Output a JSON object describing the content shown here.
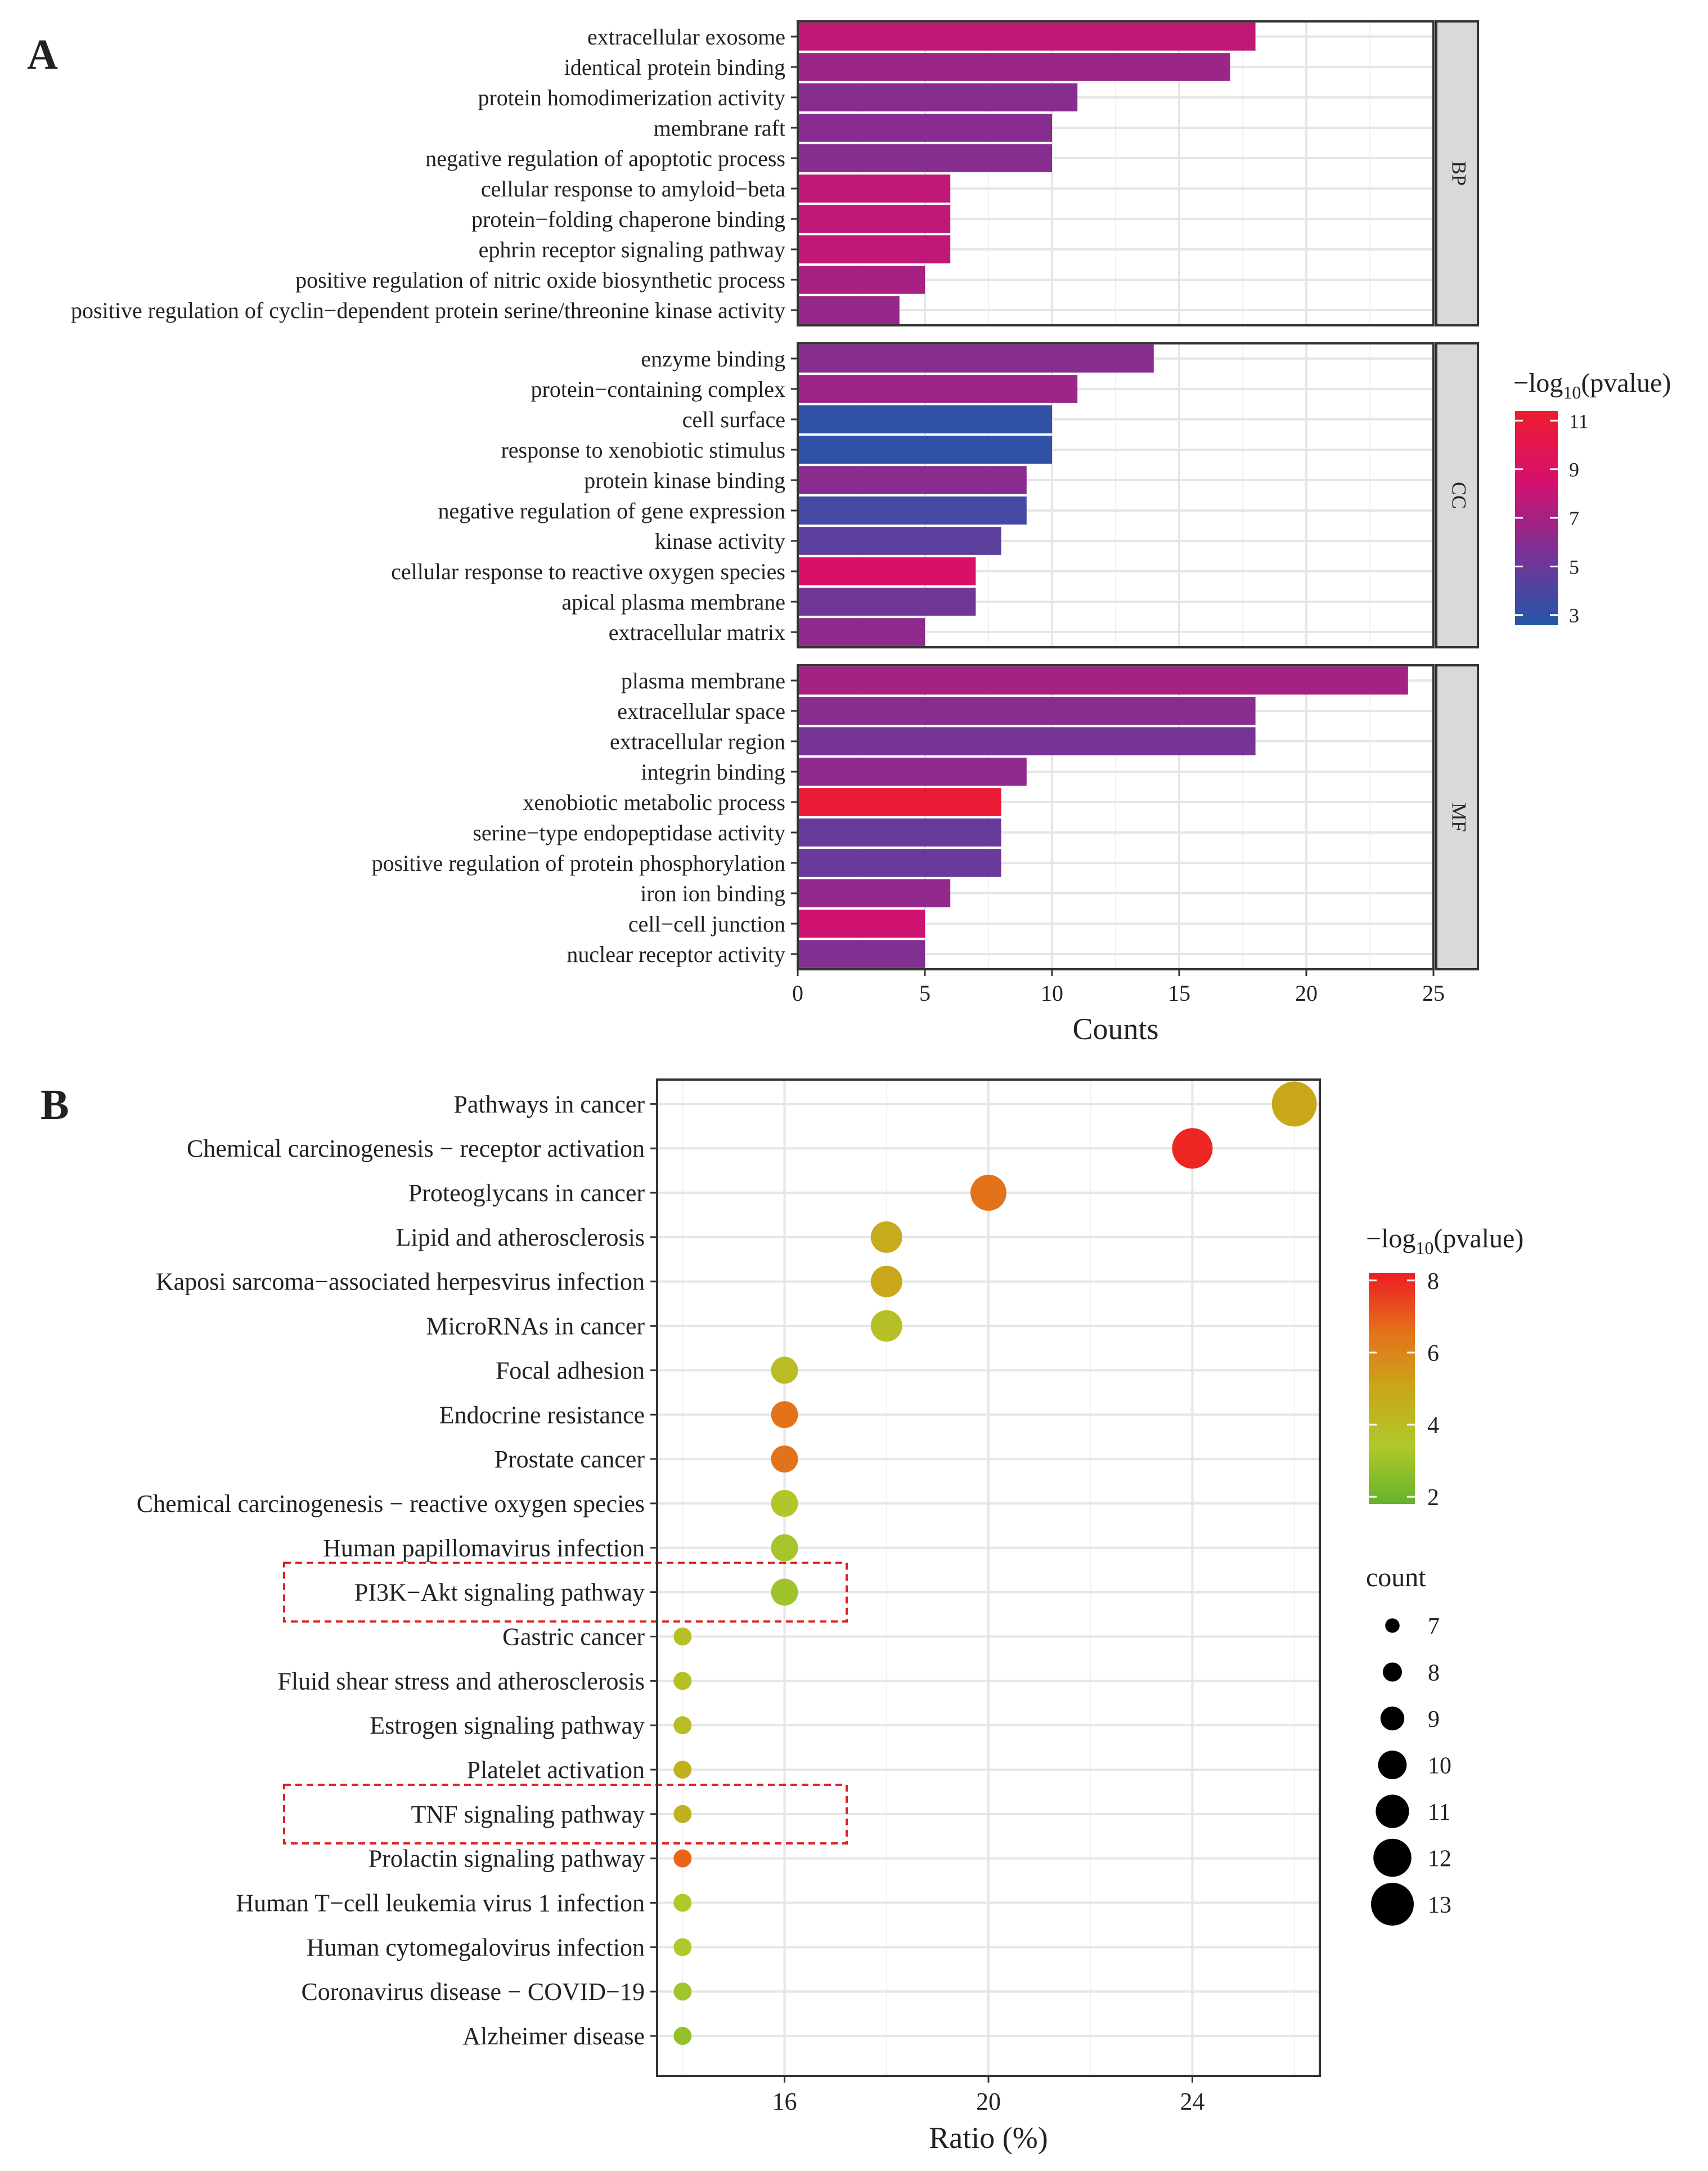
{
  "chart_data": [
    {
      "panel": "A",
      "type": "bar",
      "orientation": "horizontal",
      "xlabel": "Counts",
      "xlim": [
        0,
        25
      ],
      "xticks": [
        0,
        5,
        10,
        15,
        20,
        25
      ],
      "color_legend": {
        "title": "−log10(pvalue)",
        "title_main": "−log",
        "title_sub": "10",
        "title_rest": "(pvalue)",
        "ticks": [
          3,
          5,
          7,
          9,
          11
        ],
        "range": [
          2.6,
          11.4
        ],
        "colors": [
          "#2356a8",
          "#7a3296",
          "#d5106e",
          "#ee1c2e"
        ]
      },
      "facets": [
        {
          "name": "BP",
          "categories": [
            "extracellular exosome",
            "identical protein binding",
            "protein homodimerization activity",
            "membrane raft",
            "negative regulation of apoptotic process",
            "cellular response to amyloid−beta",
            "protein−folding chaperone binding",
            "ephrin receptor signaling pathway",
            "positive regulation of nitric oxide biosynthetic process",
            "positive regulation of cyclin−dependent protein serine/threonine kinase activity"
          ],
          "values": [
            18,
            17,
            11,
            10,
            10,
            6,
            6,
            6,
            5,
            4
          ],
          "neglog10_p": [
            7.8,
            6.6,
            6.0,
            6.0,
            6.0,
            7.8,
            7.8,
            7.8,
            7.0,
            6.4
          ]
        },
        {
          "name": "CC",
          "categories": [
            "enzyme binding",
            "protein−containing complex",
            "cell surface",
            "response to xenobiotic stimulus",
            "protein kinase binding",
            "negative regulation of gene expression",
            "kinase activity",
            "cellular response to reactive oxygen species",
            "apical plasma membrane",
            "extracellular matrix"
          ],
          "values": [
            14,
            11,
            10,
            10,
            9,
            9,
            8,
            7,
            7,
            5
          ],
          "neglog10_p": [
            6.0,
            6.6,
            3.0,
            3.0,
            6.0,
            3.7,
            4.5,
            8.8,
            5.2,
            6.2
          ]
        },
        {
          "name": "MF",
          "categories": [
            "plasma membrane",
            "extracellular space",
            "extracellular region",
            "integrin binding",
            "xenobiotic metabolic process",
            "serine−type endopeptidase activity",
            "positive regulation of protein phosphorylation",
            "iron ion binding",
            "cell−cell junction",
            "nuclear receptor activity"
          ],
          "values": [
            24,
            18,
            18,
            9,
            8,
            8,
            8,
            6,
            5,
            5
          ],
          "neglog10_p": [
            6.9,
            6.0,
            5.4,
            6.2,
            11.0,
            4.9,
            5.0,
            6.3,
            8.3,
            5.8
          ]
        }
      ]
    },
    {
      "panel": "B",
      "type": "scatter",
      "xlabel": "Ratio (%)",
      "xlim": [
        13.5,
        26.5
      ],
      "xticks": [
        16,
        20,
        24
      ],
      "categories": [
        "Pathways in cancer",
        "Chemical carcinogenesis − receptor activation",
        "Proteoglycans in cancer",
        "Lipid and atherosclerosis",
        "Kaposi sarcoma−associated herpesvirus infection",
        "MicroRNAs in cancer",
        "Focal adhesion",
        "Endocrine resistance",
        "Prostate cancer",
        "Chemical carcinogenesis − reactive oxygen species",
        "Human papillomavirus infection",
        "PI3K−Akt signaling pathway",
        "Gastric cancer",
        "Fluid shear stress and atherosclerosis",
        "Estrogen signaling pathway",
        "Platelet activation",
        "TNF signaling pathway",
        "Prolactin signaling pathway",
        "Human T−cell leukemia virus 1 infection",
        "Human cytomegalovirus infection",
        "Coronavirus disease − COVID−19",
        "Alzheimer disease"
      ],
      "x": [
        26,
        24,
        20,
        18,
        18,
        18,
        16,
        16,
        16,
        16,
        16,
        16,
        14,
        14,
        14,
        14,
        14,
        14,
        14,
        14,
        14,
        14
      ],
      "count": [
        13,
        12,
        11,
        10,
        10,
        10,
        9,
        9,
        9,
        9,
        9,
        9,
        7,
        7,
        7,
        7,
        7,
        7,
        7,
        7,
        7,
        7
      ],
      "neglog10_p": [
        5.0,
        8.0,
        6.5,
        4.8,
        5.0,
        3.8,
        4.0,
        6.5,
        6.5,
        3.5,
        3.2,
        3.0,
        3.8,
        3.8,
        4.0,
        4.5,
        4.5,
        6.8,
        3.4,
        3.4,
        3.1,
        2.8
      ],
      "highlighted": [
        "PI3K−Akt signaling pathway",
        "TNF signaling pathway"
      ],
      "color_legend": {
        "title": "−log10(pvalue)",
        "title_main": "−log",
        "title_sub": "10",
        "title_rest": "(pvalue)",
        "ticks": [
          2,
          4,
          6,
          8
        ],
        "range": [
          1.8,
          8.2
        ],
        "colors": [
          "#66b32e",
          "#b0c82a",
          "#c9a71a",
          "#e5701a",
          "#ee1c24"
        ]
      },
      "size_legend": {
        "title": "count",
        "values": [
          7,
          8,
          9,
          10,
          11,
          12,
          13
        ]
      }
    }
  ]
}
